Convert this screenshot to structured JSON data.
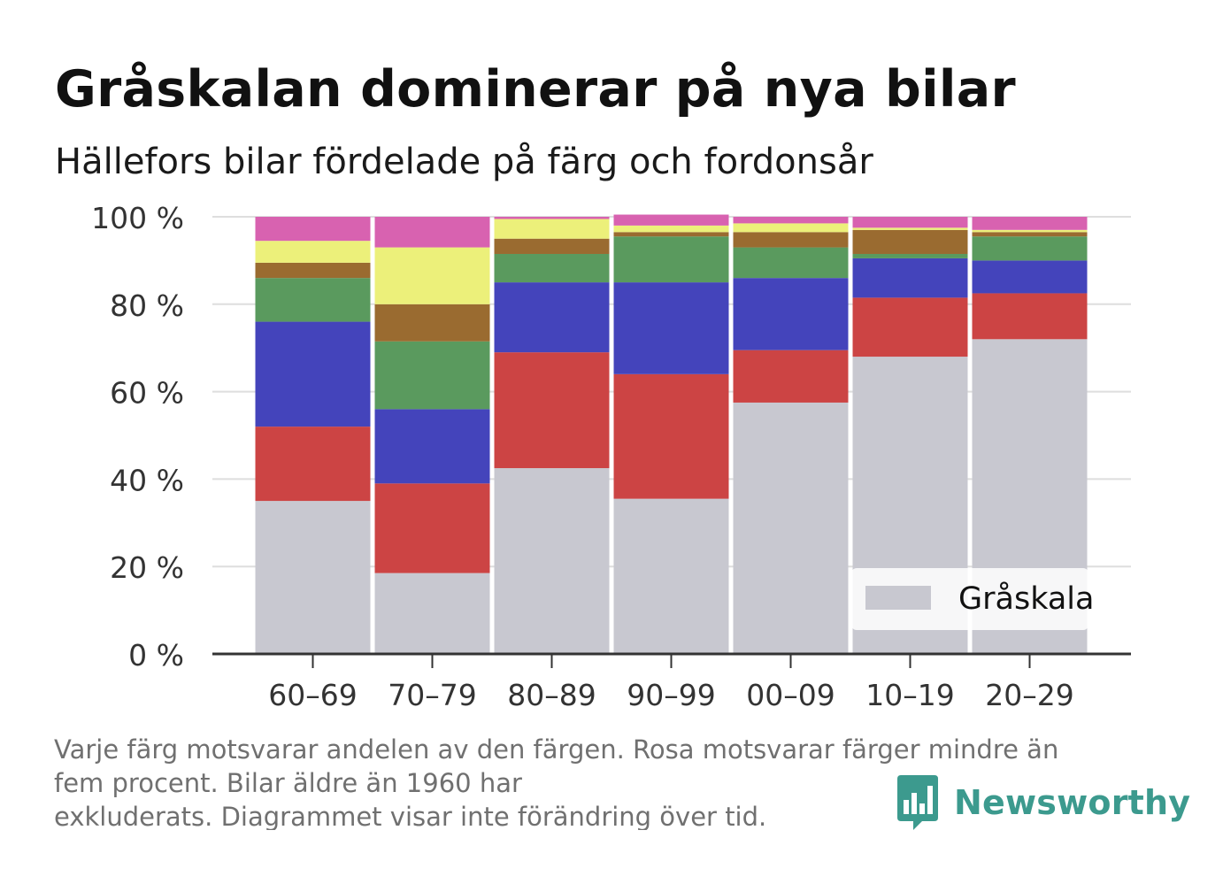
{
  "title": "Gråskalan dominerar på nya bilar",
  "subtitle": "Hällefors bilar fördelade på färg och fordonsår",
  "footnote": [
    "Varje färg motsvarar andelen av den färgen. Rosa motsvarar färger mindre än",
    "fem procent. Bilar äldre än 1960 har",
    "exkluderats. Diagrammet visar inte förändring över tid."
  ],
  "logo": {
    "text": "Newsworthy",
    "icon": "bar-chart-bubble-icon",
    "color": "#3c9a8e"
  },
  "chart_data": {
    "type": "bar",
    "stacked": true,
    "categories": [
      "60–69",
      "70–79",
      "80–89",
      "90–99",
      "00–09",
      "10–19",
      "20–29"
    ],
    "yticks": [
      "0 %",
      "20 %",
      "40 %",
      "60 %",
      "80 %",
      "100 %"
    ],
    "ylim": [
      0,
      100
    ],
    "grid": true,
    "legend": {
      "position": "bottom-right",
      "entries": [
        "Gråskala"
      ]
    },
    "series": [
      {
        "name": "Gråskala",
        "color": "#c8c8d0",
        "values": [
          35,
          18.5,
          42.5,
          35.5,
          57.5,
          68,
          72
        ]
      },
      {
        "color": "#cc4444",
        "values": [
          17,
          20.5,
          26.5,
          28.5,
          12,
          13.5,
          10.5
        ]
      },
      {
        "color": "#4444bb",
        "values": [
          24,
          17,
          16,
          21,
          16.5,
          9,
          7.5
        ]
      },
      {
        "color": "#5a9a5e",
        "values": [
          10,
          15.5,
          6.5,
          10.5,
          7,
          1,
          5.5
        ]
      },
      {
        "color": "#9a6b30",
        "values": [
          3.5,
          8.5,
          3.5,
          1,
          3.5,
          5.5,
          1
        ]
      },
      {
        "color": "#ecf07a",
        "values": [
          5,
          13,
          4.5,
          1.5,
          2,
          0.5,
          0.5
        ]
      },
      {
        "color": "#d862b0",
        "values": [
          5.5,
          7,
          0.5,
          2.5,
          1.5,
          2.5,
          3
        ]
      }
    ]
  }
}
